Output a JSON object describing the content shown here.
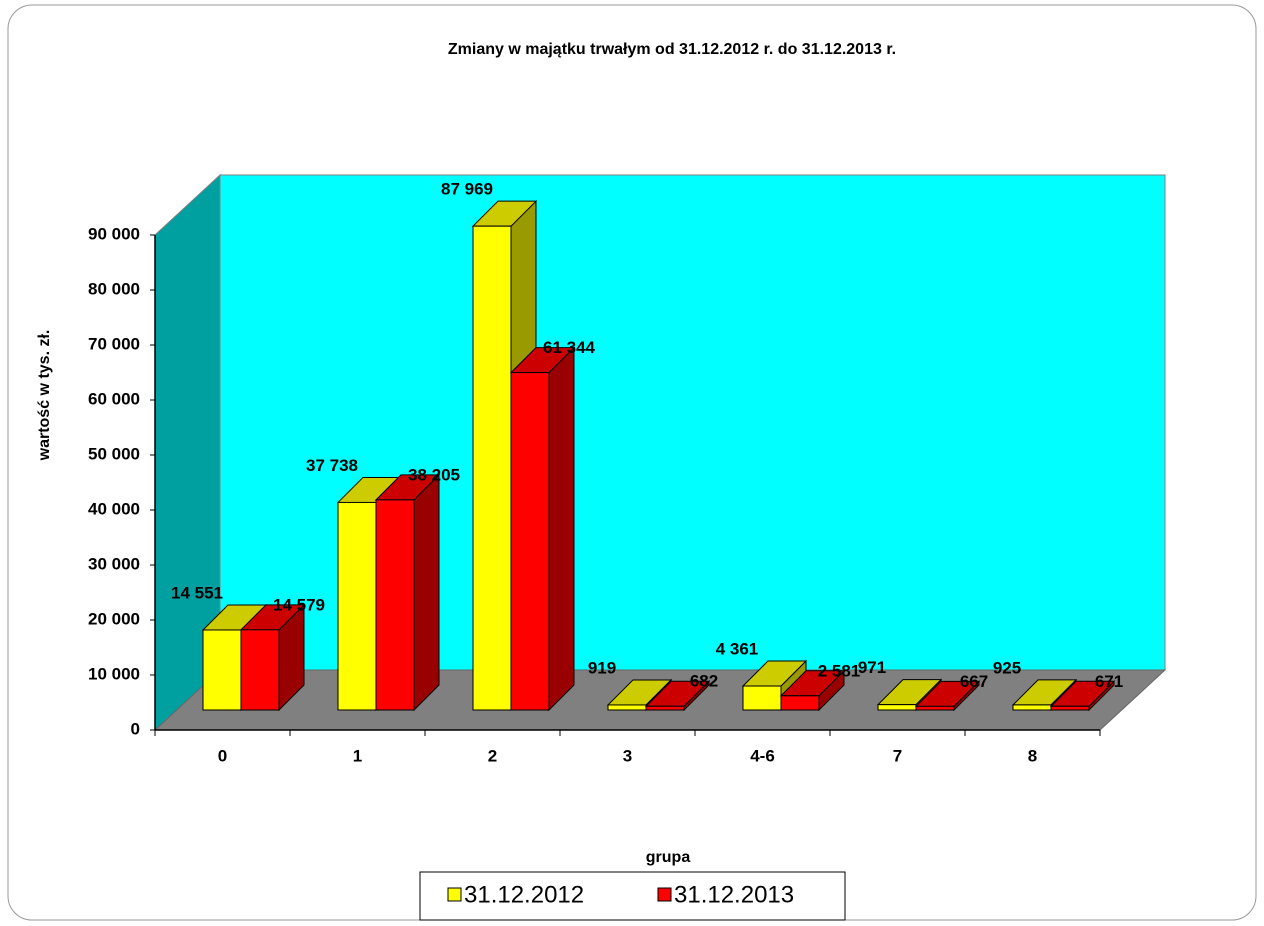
{
  "chart_data": {
    "type": "bar3d",
    "title": "Zmiany w majątku trwałym od 31.12.2012 r. do 31.12.2013 r.",
    "y_label": "wartość w tys. zł.",
    "x_label": "grupa",
    "categories": [
      "0",
      "1",
      "2",
      "3",
      "4-6",
      "7",
      "8"
    ],
    "series": [
      {
        "name": "31.12.2012",
        "color": "#ffff00",
        "values": [
          14551,
          37738,
          87969,
          919,
          4361,
          971,
          925
        ],
        "value_labels": [
          "14 551",
          "37 738",
          "87 969",
          "919",
          "4 361",
          "971",
          "925"
        ]
      },
      {
        "name": "31.12.2013",
        "color": "#ff0000",
        "values": [
          14579,
          38205,
          61344,
          682,
          2581,
          667,
          671
        ],
        "value_labels": [
          "14 579",
          "38 205",
          "61 344",
          "682",
          "2 581",
          "667",
          "671"
        ]
      }
    ],
    "ylim": [
      0,
      90000
    ],
    "yticks": [
      {
        "value": 0,
        "label": "0"
      },
      {
        "value": 10000,
        "label": "10 000"
      },
      {
        "value": 20000,
        "label": "20 000"
      },
      {
        "value": 30000,
        "label": "30 000"
      },
      {
        "value": 40000,
        "label": "40 000"
      },
      {
        "value": 50000,
        "label": "50 000"
      },
      {
        "value": 60000,
        "label": "60 000"
      },
      {
        "value": 70000,
        "label": "70 000"
      },
      {
        "value": 80000,
        "label": "80 000"
      },
      {
        "value": 90000,
        "label": "90 000"
      }
    ],
    "grid": false,
    "legend": "bottom"
  }
}
